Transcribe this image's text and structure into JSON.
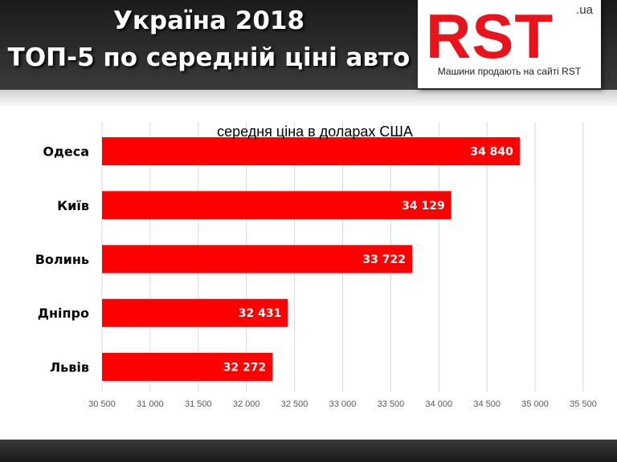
{
  "header": {
    "title_line1": "Україна 2018",
    "title_line2": "ТОП-5 по середній ціні авто"
  },
  "logo": {
    "name": "RST",
    "domain": ".ua",
    "tagline": "Машини продають на сайті RST"
  },
  "colors": {
    "bar": "#ff0000",
    "grid": "#d9d9d9",
    "brand": "#e8141c"
  },
  "chart_data": {
    "type": "bar",
    "orientation": "horizontal",
    "title": "середня ціна в доларах США",
    "categories": [
      "Одеса",
      "Київ",
      "Волинь",
      "Дніпро",
      "Львів"
    ],
    "values": [
      34840,
      34129,
      33722,
      32431,
      32272
    ],
    "value_labels": [
      "34 840",
      "34 129",
      "33 722",
      "32 431",
      "32 272"
    ],
    "xlim": [
      30500,
      35500
    ],
    "xticks": [
      30500,
      31000,
      31500,
      32000,
      32500,
      33000,
      33500,
      34000,
      34500,
      35000,
      35500
    ],
    "xtick_labels": [
      "30 500",
      "31 000",
      "31 500",
      "32 000",
      "32 500",
      "33 000",
      "33 500",
      "34 000",
      "34 500",
      "35 000",
      "35 500"
    ],
    "grid": true,
    "legend": "none"
  }
}
